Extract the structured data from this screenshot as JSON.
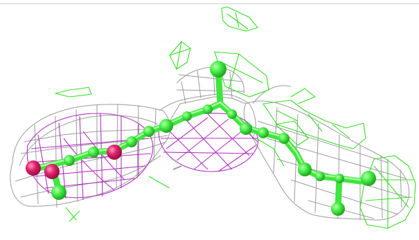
{
  "scene": {
    "background": "#ffffff",
    "colors": {
      "grey_mesh": "#9a9a9a",
      "magenta_mesh": "#b030c0",
      "green_mesh": "#33dd22",
      "green_atom": "#44ee44",
      "green_atom_shade": "#22aa22",
      "magenta_atom": "#e0206a",
      "magenta_atom_shade": "#a01048"
    },
    "labels": []
  }
}
